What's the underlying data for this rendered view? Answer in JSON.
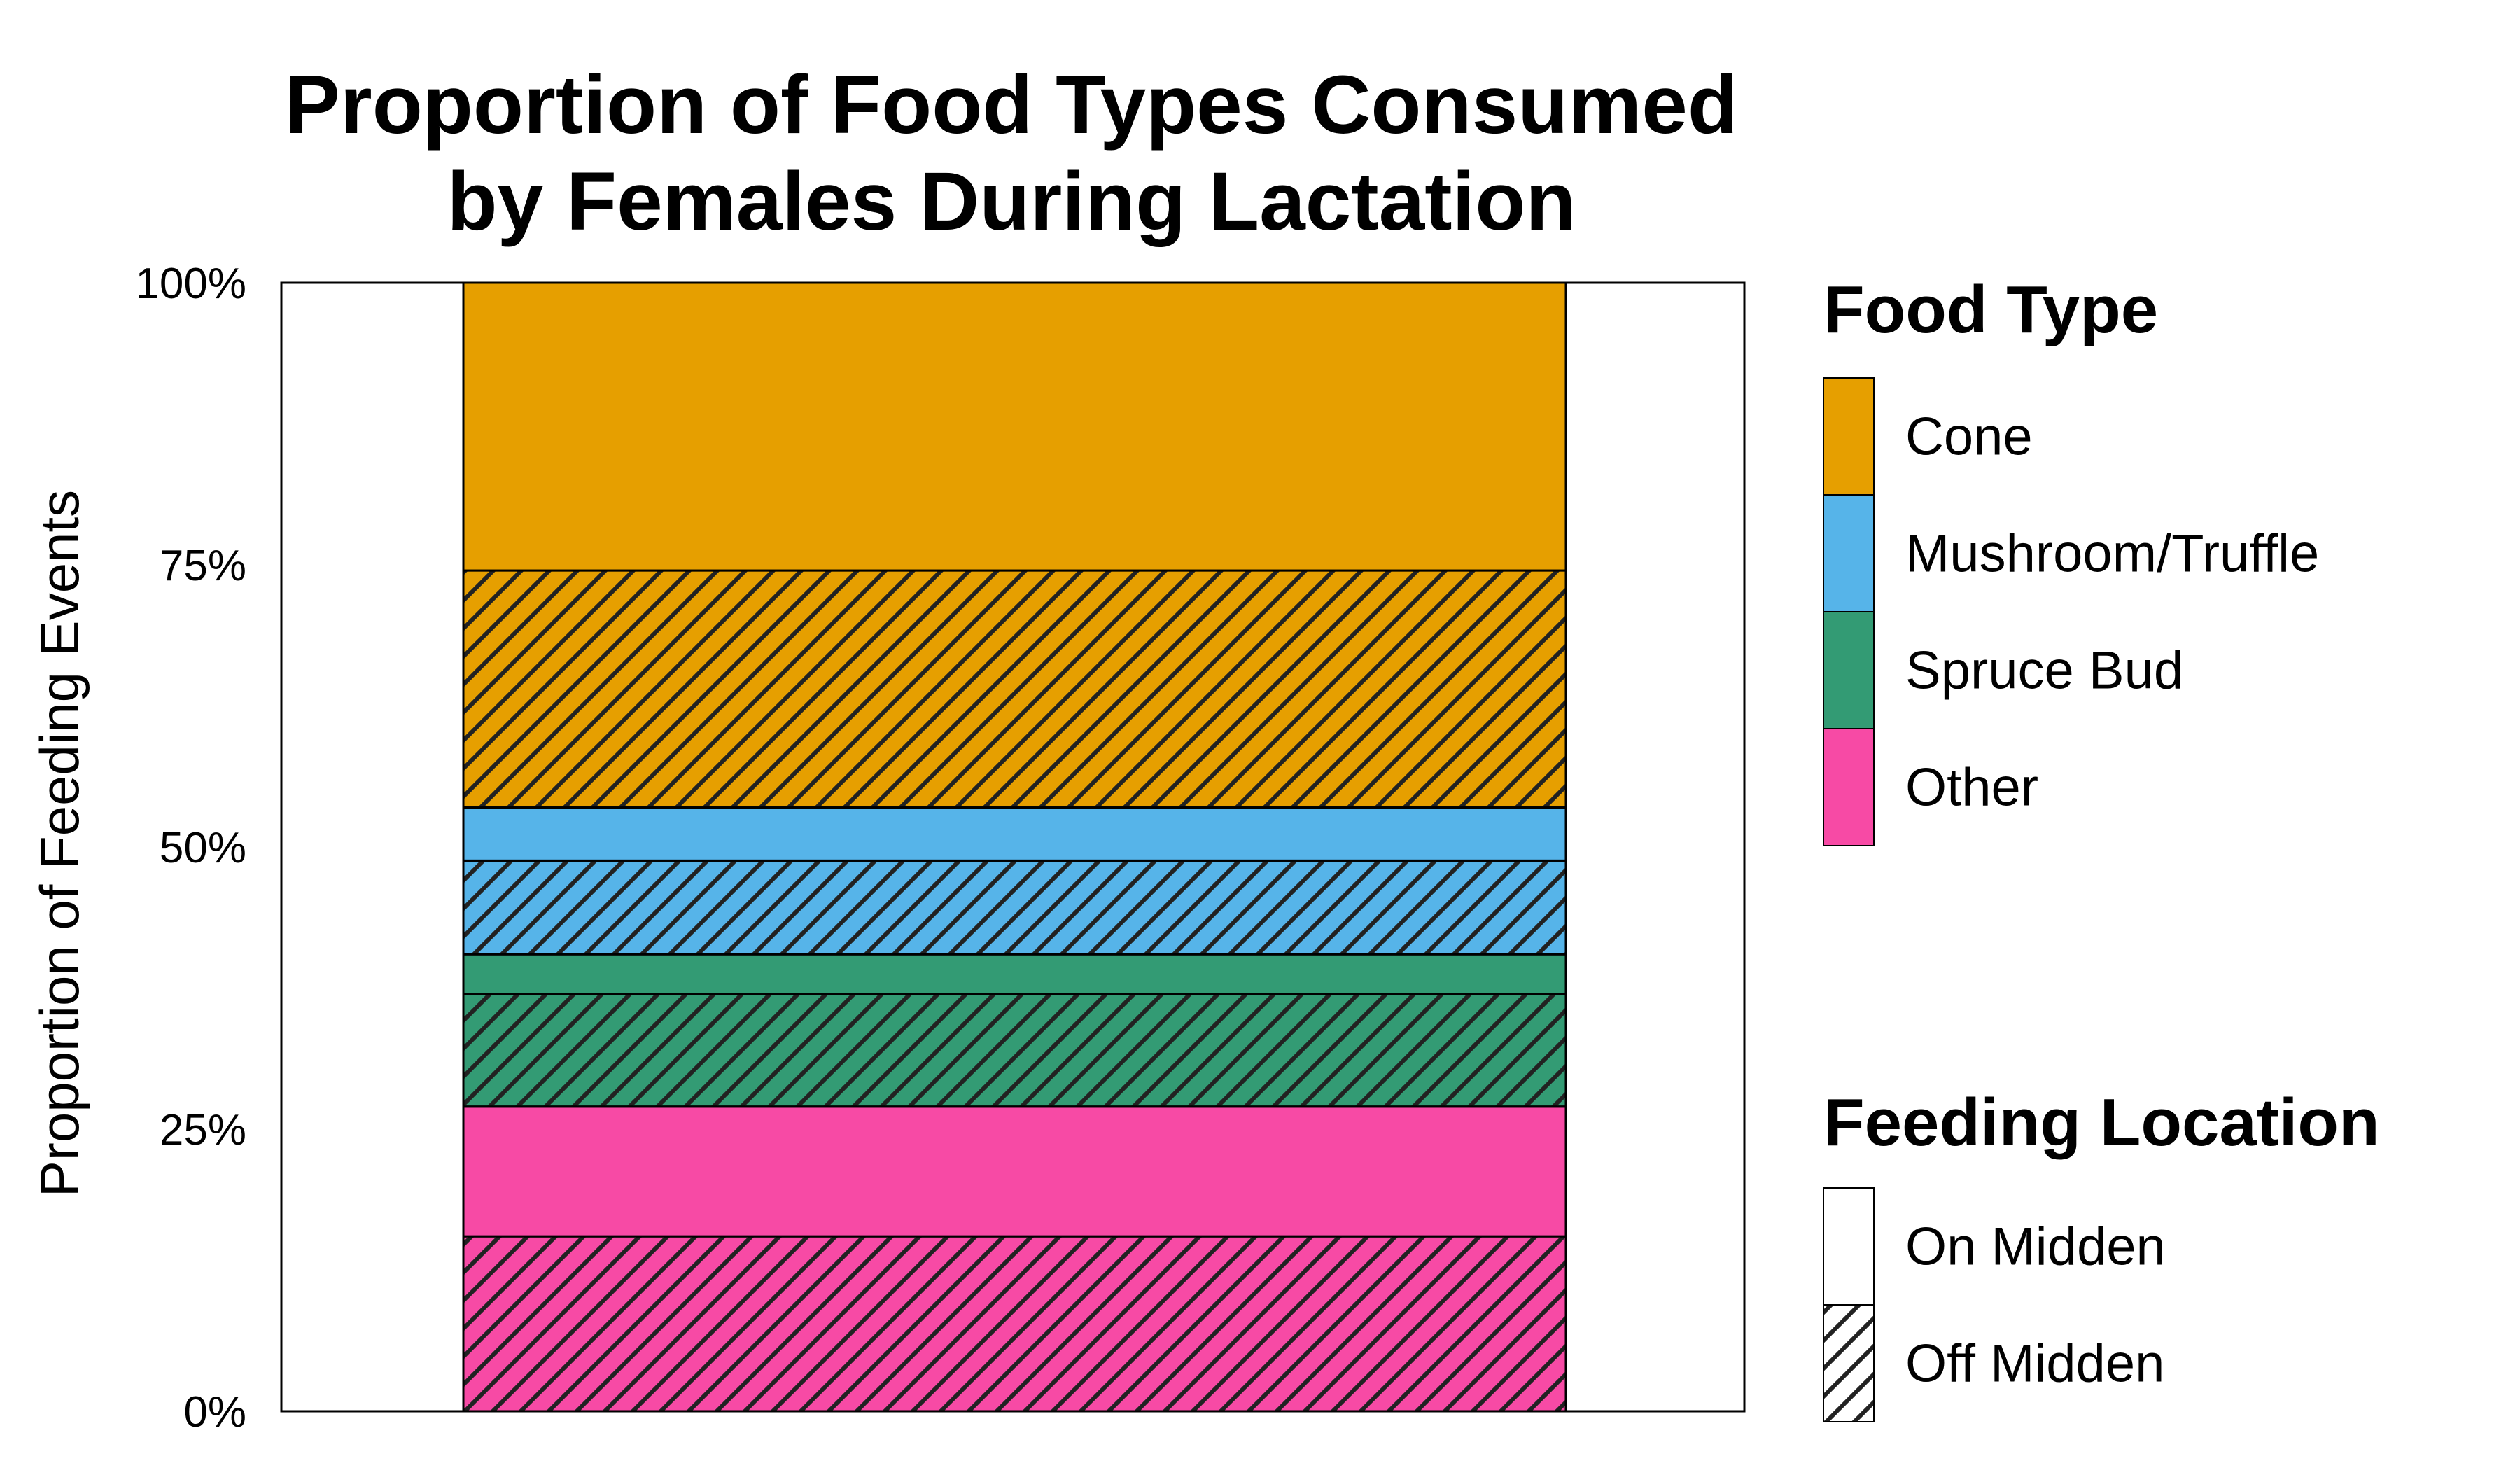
{
  "chart_data": {
    "type": "bar",
    "stacked": true,
    "orientation": "vertical",
    "title_lines": [
      "Proportion of Food Types Consumed",
      "by Females During Lactation"
    ],
    "ylabel": "Proportion of Feeding Events",
    "xlabel": "",
    "ylim": [
      0,
      1
    ],
    "y_ticks": [
      {
        "value": 0,
        "label": "0%"
      },
      {
        "value": 0.25,
        "label": "25%"
      },
      {
        "value": 0.5,
        "label": "50%"
      },
      {
        "value": 0.75,
        "label": "75%"
      },
      {
        "value": 1,
        "label": "100%"
      }
    ],
    "grid": false,
    "segments": [
      {
        "food": "Other",
        "location": "Off Midden",
        "value": 0.155
      },
      {
        "food": "Other",
        "location": "On Midden",
        "value": 0.115
      },
      {
        "food": "Spruce Bud",
        "location": "Off Midden",
        "value": 0.1
      },
      {
        "food": "Spruce Bud",
        "location": "On Midden",
        "value": 0.035
      },
      {
        "food": "Mushroom/Truffle",
        "location": "Off Midden",
        "value": 0.083
      },
      {
        "food": "Mushroom/Truffle",
        "location": "On Midden",
        "value": 0.047
      },
      {
        "food": "Cone",
        "location": "Off Midden",
        "value": 0.21
      },
      {
        "food": "Cone",
        "location": "On Midden",
        "value": 0.255
      }
    ],
    "legend_placement": "right",
    "legends": {
      "food_type": {
        "title": "Food Type",
        "items": [
          {
            "label": "Cone",
            "color": "#E69F00"
          },
          {
            "label": "Mushroom/Truffle",
            "color": "#56B4E9"
          },
          {
            "label": "Spruce Bud",
            "color": "#339B74"
          },
          {
            "label": "Other",
            "color": "#F74AA5"
          }
        ]
      },
      "feeding_location": {
        "title": "Feeding Location",
        "items": [
          {
            "label": "On Midden",
            "pattern": "none"
          },
          {
            "label": "Off Midden",
            "pattern": "hatch"
          }
        ]
      }
    }
  }
}
